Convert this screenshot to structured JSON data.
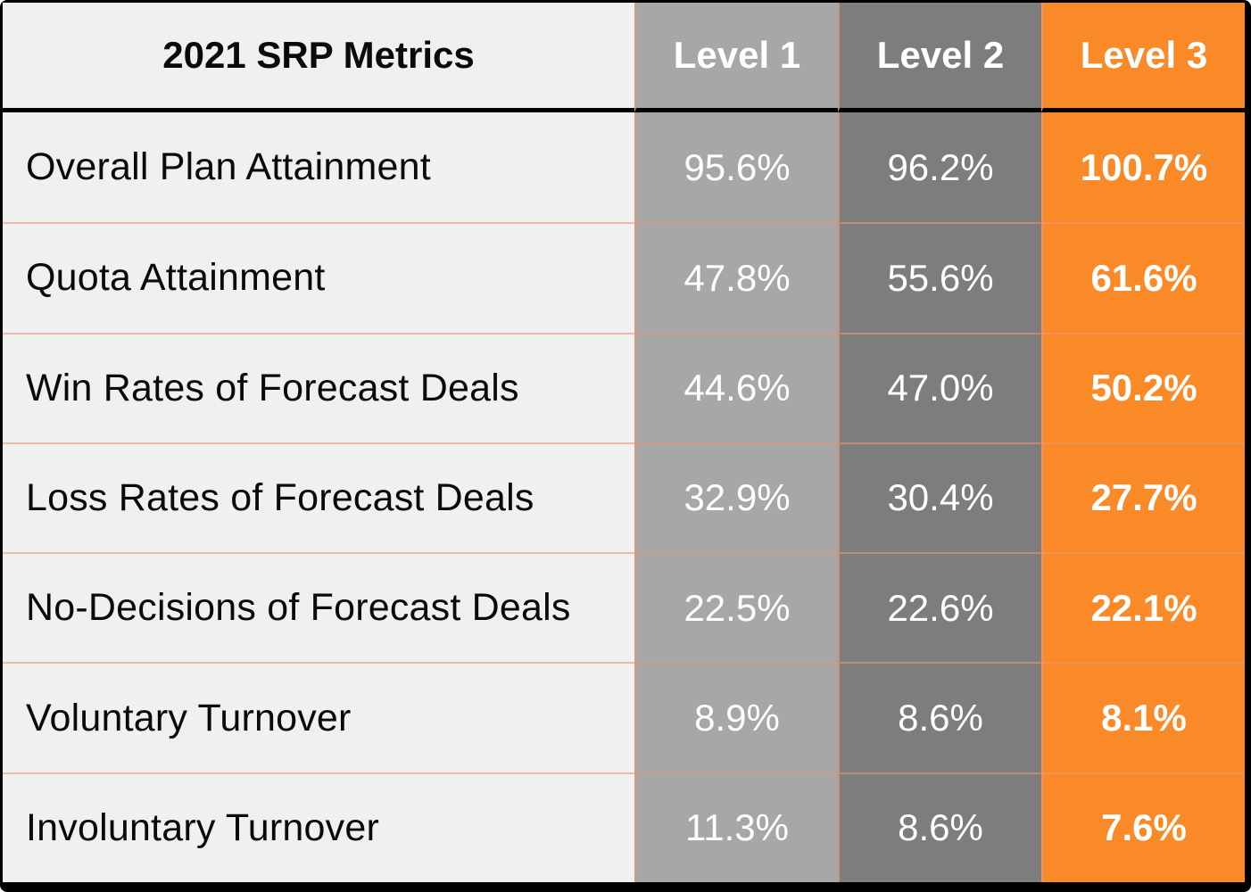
{
  "table": {
    "title": "2021 SRP Metrics",
    "columns": [
      "Level 1",
      "Level 2",
      "Level 3"
    ],
    "rows": [
      {
        "label": "Overall Plan Attainment",
        "values": [
          "95.6%",
          "96.2%",
          "100.7%"
        ]
      },
      {
        "label": "Quota Attainment",
        "values": [
          "47.8%",
          "55.6%",
          "61.6%"
        ]
      },
      {
        "label": "Win Rates of Forecast Deals",
        "values": [
          "44.6%",
          "47.0%",
          "50.2%"
        ]
      },
      {
        "label": "Loss Rates of Forecast Deals",
        "values": [
          "32.9%",
          "30.4%",
          "27.7%"
        ]
      },
      {
        "label": "No-Decisions of Forecast Deals",
        "values": [
          "22.5%",
          "22.6%",
          "22.1%"
        ]
      },
      {
        "label": "Voluntary Turnover",
        "values": [
          "8.9%",
          "8.6%",
          "8.1%"
        ]
      },
      {
        "label": "Involuntary Turnover",
        "values": [
          "11.3%",
          "8.6%",
          "7.6%"
        ]
      }
    ]
  },
  "colors": {
    "frame_border": "#000000",
    "metric_column_bg": "#f0f0ef",
    "level1_bg": "#a7a7a7",
    "level2_bg": "#7d7d7d",
    "level3_bg": "#fa8a28",
    "header_text": "#ffffff",
    "metric_text": "#0a0a0a",
    "separator_line": "#e99674"
  },
  "chart_data": {
    "type": "table",
    "title": "2021 SRP Metrics",
    "categories": [
      "Overall Plan Attainment",
      "Quota Attainment",
      "Win Rates of Forecast Deals",
      "Loss Rates of Forecast Deals",
      "No-Decisions of Forecast Deals",
      "Voluntary Turnover",
      "Involuntary Turnover"
    ],
    "series": [
      {
        "name": "Level 1",
        "values": [
          95.6,
          47.8,
          44.6,
          32.9,
          22.5,
          8.9,
          11.3
        ]
      },
      {
        "name": "Level 2",
        "values": [
          96.2,
          55.6,
          47.0,
          30.4,
          22.6,
          8.6,
          8.6
        ]
      },
      {
        "name": "Level 3",
        "values": [
          100.7,
          61.6,
          50.2,
          27.7,
          22.1,
          8.1,
          7.6
        ]
      }
    ],
    "unit": "%",
    "notes": "Level 3 column highlighted in orange with bold values"
  }
}
